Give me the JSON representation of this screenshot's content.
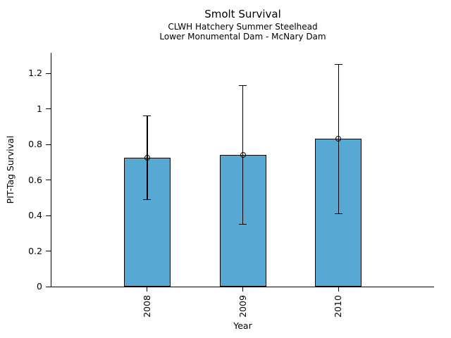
{
  "header": {
    "title": "Smolt Survival",
    "subtitle1": "CLWH Hatchery Summer Steelhead",
    "subtitle2": "Lower Monumental Dam - McNary Dam"
  },
  "chart_data": {
    "type": "bar",
    "title": "Smolt Survival",
    "subtitle1": "CLWH Hatchery Summer Steelhead",
    "subtitle2": "Lower Monumental Dam - McNary Dam",
    "xlabel": "Year",
    "ylabel": "PIT-Tag Survival",
    "categories": [
      "2008",
      "2009",
      "2010"
    ],
    "values": [
      0.725,
      0.74,
      0.83
    ],
    "error_low": [
      0.49,
      0.35,
      0.41
    ],
    "error_high": [
      0.96,
      1.13,
      1.25
    ],
    "yticks": [
      0,
      0.2,
      0.4,
      0.6,
      0.8,
      1,
      1.2
    ],
    "ytick_labels": [
      "0",
      "0.2",
      "0.4",
      "0.6",
      "0.8",
      "1",
      "1.2"
    ],
    "ylim": [
      0,
      1.315
    ],
    "grid": false,
    "legend": "none",
    "bar_color": "#57A8D3",
    "bar_edge_color": "#000000",
    "error_bar_color": "#000000",
    "marker": "open-circle",
    "axis_color": "#000000",
    "background_color": "#ffffff"
  }
}
